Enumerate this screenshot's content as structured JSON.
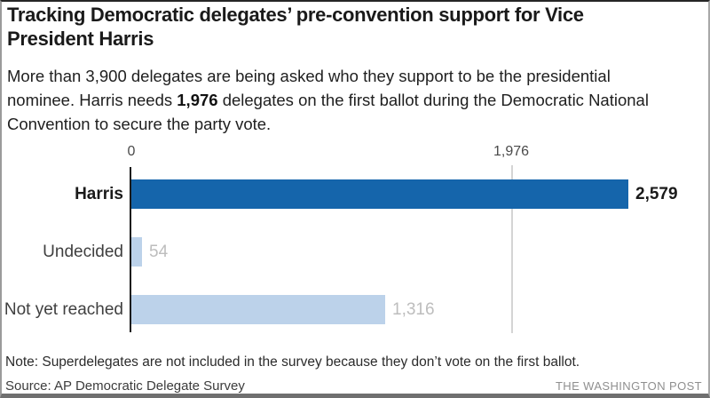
{
  "header": {
    "title": "Tracking Democratic delegates’ pre-convention support for Vice President Harris",
    "subtitle_parts": {
      "before": "More than 3,900 delegates are being asked who they support to be the presidential nominee. Harris needs ",
      "bold": "1,976",
      "after": " delegates on the first ballot during the Democratic National Convention to secure the party vote."
    }
  },
  "chart_data": {
    "type": "bar",
    "orientation": "horizontal",
    "categories": [
      "Harris",
      "Undecided",
      "Not yet reached"
    ],
    "values": [
      2579,
      54,
      1316
    ],
    "value_labels": [
      "2,579",
      "54",
      "1,316"
    ],
    "xlabel": "",
    "ylabel": "",
    "axis": {
      "min": 0,
      "max_shown": 2579,
      "ticks": [
        {
          "value": 0,
          "label": "0"
        },
        {
          "value": 1976,
          "label": "1,976"
        }
      ],
      "threshold_value": 1976,
      "threshold_meaning": "delegates needed on first ballot"
    },
    "grid": "single vertical gridline at 1,976 behind bars",
    "legend": null,
    "colors": {
      "harris_bar": "#1565ab",
      "muted_bar": "#bcd2ea",
      "gridline": "#d4d4d4",
      "axis_line": "#1a1a1a",
      "highlight_value_label": "#1a1a1a",
      "muted_value_label": "#bdbdbd"
    }
  },
  "footer": {
    "note": "Note: Superdelegates are not included in the survey because they don’t vote on the first ballot.",
    "source": "Source: AP Democratic Delegate Survey",
    "attribution": "THE WASHINGTON POST"
  }
}
